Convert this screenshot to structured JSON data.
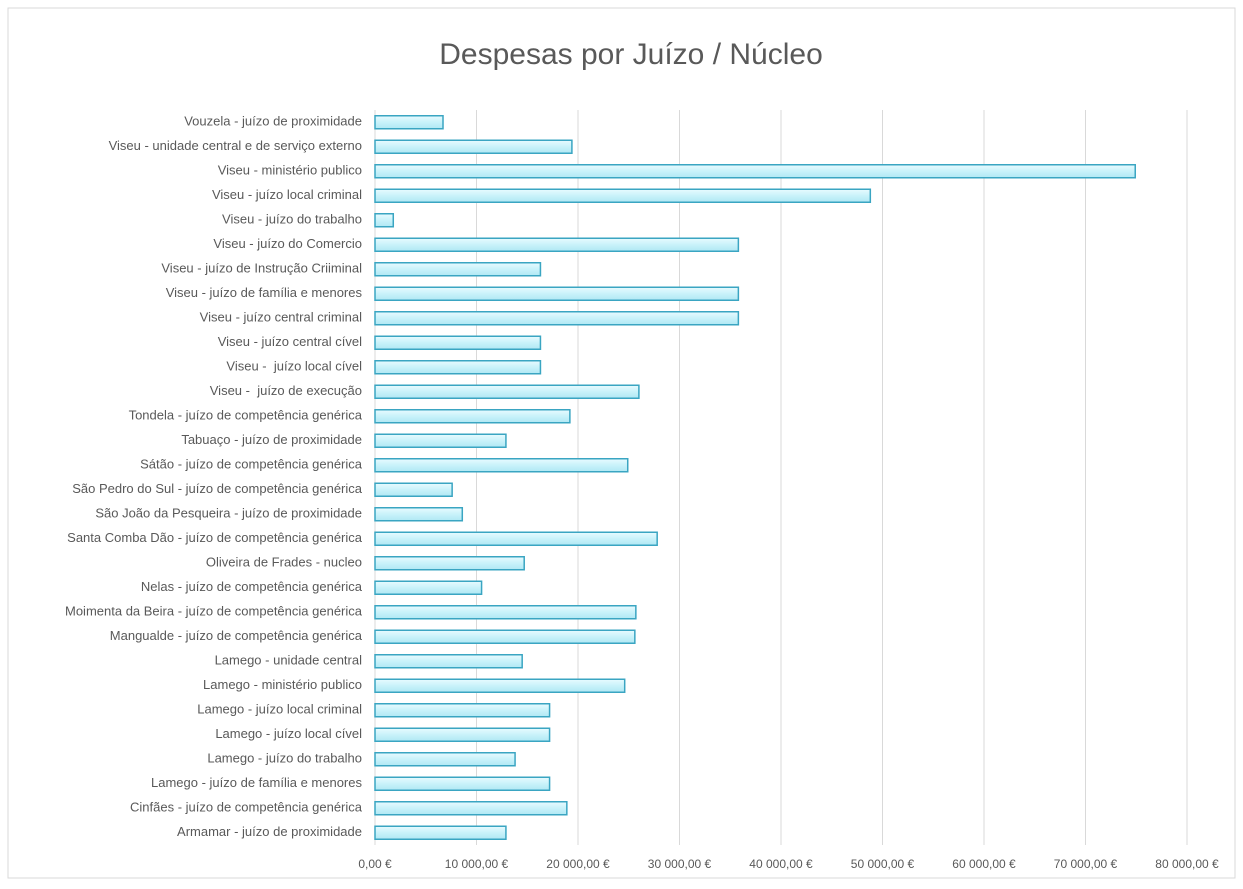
{
  "chart_data": {
    "type": "barh",
    "title": "Despesas por Juízo / Núcleo",
    "categories": [
      "Vouzela - juízo de proximidade",
      "Viseu - unidade central e de serviço externo",
      "Viseu - ministério publico",
      "Viseu - juízo local criminal",
      "Viseu - juízo do trabalho",
      "Viseu - juízo do Comercio",
      "Viseu - juízo de Instrução Criiminal",
      "Viseu - juízo de família e menores",
      "Viseu - juízo central criminal",
      "Viseu - juízo central cível",
      "Viseu -  juízo local cível",
      "Viseu -  juízo de execução",
      "Tondela - juízo de competência genérica",
      "Tabuaço - juízo de proximidade",
      "Sátão - juízo de competência genérica",
      "São Pedro do Sul - juízo de competência genérica",
      "São João da Pesqueira - juízo de proximidade",
      "Santa Comba Dão - juízo de competência genérica",
      "Oliveira de Frades - nucleo",
      "Nelas - juízo de competência genérica",
      "Moimenta da Beira - juízo de competência genérica",
      "Mangualde - juízo de competência genérica",
      "Lamego - unidade central",
      "Lamego - ministério publico",
      "Lamego - juízo local criminal",
      "Lamego - juízo local cível",
      "Lamego - juízo do trabalho",
      "Lamego - juízo de família e menores",
      "Cinfães - juízo de competência genérica",
      "Armamar - juízo de proximidade"
    ],
    "values": [
      6700,
      19400,
      74900,
      48800,
      1800,
      35800,
      16300,
      35800,
      35800,
      16300,
      16300,
      26000,
      19200,
      12900,
      24900,
      7600,
      8600,
      27800,
      14700,
      10500,
      25700,
      25600,
      14500,
      24600,
      17200,
      17200,
      13800,
      17200,
      18900,
      12900
    ],
    "color": "#c9f2fa",
    "edge_color": "#3aa5c2",
    "xlim": [
      0,
      80000
    ],
    "xticks": [
      {
        "value": 0,
        "label": "0,00 €"
      },
      {
        "value": 10000,
        "label": "10 000,00 €"
      },
      {
        "value": 20000,
        "label": "20 000,00 €"
      },
      {
        "value": 30000,
        "label": "30 000,00 €"
      },
      {
        "value": 40000,
        "label": "40 000,00 €"
      },
      {
        "value": 50000,
        "label": "50 000,00 €"
      },
      {
        "value": 60000,
        "label": "60 000,00 €"
      },
      {
        "value": 70000,
        "label": "70 000,00 €"
      },
      {
        "value": 80000,
        "label": "80 000,00 €"
      }
    ],
    "grid": true
  }
}
